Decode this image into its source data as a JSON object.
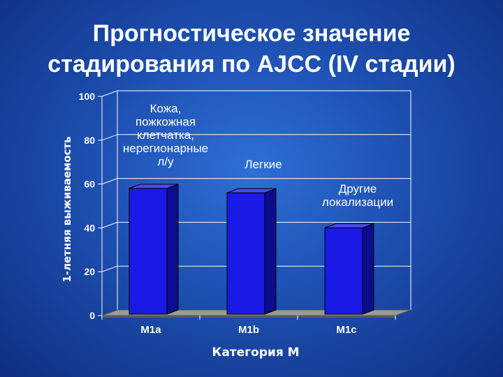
{
  "slide": {
    "title_line1": "Прогностическое значение",
    "title_line2": "стадирования по AJCC (IV стадии)"
  },
  "colors": {
    "background": "#1d4fb0",
    "bar_front": "#1a1ae6",
    "bar_side": "#0c0c8c",
    "bar_top": "#4a4af0",
    "floor": "#9a9a9a",
    "gridline": "#ffffff"
  },
  "chart_data": {
    "type": "bar",
    "categories": [
      "M1a",
      "M1b",
      "M1c"
    ],
    "values": [
      58,
      56,
      40
    ],
    "xlabel": "Категория М",
    "ylabel": "1-летняя выживаемость",
    "ylim": [
      0,
      100
    ],
    "yticks": [
      0,
      20,
      40,
      60,
      80,
      100
    ],
    "grid": true,
    "style": "3d",
    "annotations": [
      {
        "category": "M1a",
        "lines": [
          "Кожа,",
          "пожкожная",
          "клетчатка,",
          "нерегионарные",
          "л/у"
        ]
      },
      {
        "category": "M1b",
        "lines": [
          "Легкие"
        ]
      },
      {
        "category": "M1c",
        "lines": [
          "Другие",
          "локализации"
        ]
      }
    ]
  }
}
